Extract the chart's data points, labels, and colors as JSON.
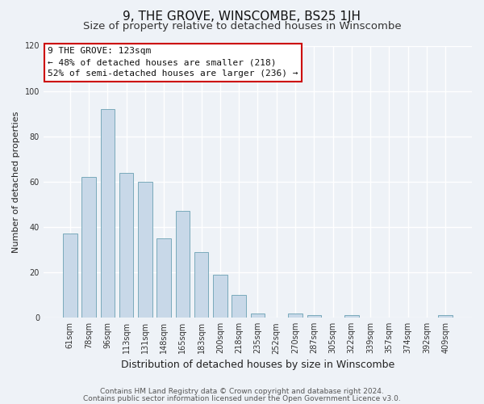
{
  "title": "9, THE GROVE, WINSCOMBE, BS25 1JH",
  "subtitle": "Size of property relative to detached houses in Winscombe",
  "xlabel": "Distribution of detached houses by size in Winscombe",
  "ylabel": "Number of detached properties",
  "bar_color": "#c8d8e8",
  "bar_edge_color": "#7aaabb",
  "categories": [
    "61sqm",
    "78sqm",
    "96sqm",
    "113sqm",
    "131sqm",
    "148sqm",
    "165sqm",
    "183sqm",
    "200sqm",
    "218sqm",
    "235sqm",
    "252sqm",
    "270sqm",
    "287sqm",
    "305sqm",
    "322sqm",
    "339sqm",
    "357sqm",
    "374sqm",
    "392sqm",
    "409sqm"
  ],
  "values": [
    37,
    62,
    92,
    64,
    60,
    35,
    47,
    29,
    19,
    10,
    2,
    0,
    2,
    1,
    0,
    1,
    0,
    0,
    0,
    0,
    1
  ],
  "ylim": [
    0,
    120
  ],
  "yticks": [
    0,
    20,
    40,
    60,
    80,
    100,
    120
  ],
  "annotation_line1": "9 THE GROVE: 123sqm",
  "annotation_line2": "← 48% of detached houses are smaller (218)",
  "annotation_line3": "52% of semi-detached houses are larger (236) →",
  "annotation_box_color": "white",
  "annotation_box_edgecolor": "#cc0000",
  "footer_line1": "Contains HM Land Registry data © Crown copyright and database right 2024.",
  "footer_line2": "Contains public sector information licensed under the Open Government Licence v3.0.",
  "background_color": "#eef2f7",
  "grid_color": "white",
  "title_fontsize": 11,
  "subtitle_fontsize": 9.5,
  "xlabel_fontsize": 9,
  "ylabel_fontsize": 8,
  "tick_fontsize": 7,
  "footer_fontsize": 6.5,
  "annotation_fontsize": 8
}
